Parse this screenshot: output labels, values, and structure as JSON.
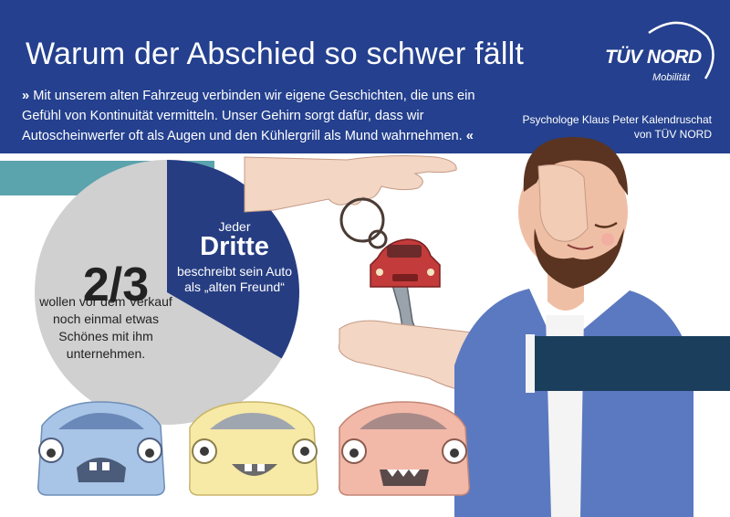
{
  "header": {
    "title": "Warum der Abschied so schwer fällt",
    "quote_open": "»",
    "quote_text": "Mit unserem alten Fahrzeug verbinden wir eigene Geschichten, die uns ein Gefühl von Kontinuität vermitteln. Unser Gehirn sorgt dafür, dass wir Autoscheinwerfer oft als Augen und den Kühlergrill als Mund wahrnehmen.",
    "quote_close": "«",
    "attribution_line1": "Psychologe Klaus Peter Kalendruschat",
    "attribution_line2": "von TÜV NORD",
    "logo_name": "TÜV NORD",
    "logo_sub": "Mobilität"
  },
  "stats": {
    "two_thirds_value": "2/3",
    "two_thirds_text": "wollen vor dem Verkauf noch einmal etwas Schönes mit ihm unternehmen.",
    "third_intro": "Jeder",
    "third_value": "Dritte",
    "third_text": "beschreibt sein Auto als „alten Freund“"
  },
  "pie_data": {
    "shares": [
      0.6667,
      0.3333
    ],
    "labels": [
      "2/3",
      "Dritte"
    ]
  },
  "colors": {
    "header_bg": "#24408e",
    "accent_teal": "#5ba3ad",
    "pie_gray": "#d0d0d0",
    "pie_navy": "#263d82",
    "car_blue": "#a8c4e6",
    "car_yellow": "#f7e9a6",
    "car_peach": "#f2b8a8",
    "shirt_blue": "#5b79c0",
    "key_car_red": "#c33b3b",
    "sleeve_navy": "#1b3e5c"
  }
}
